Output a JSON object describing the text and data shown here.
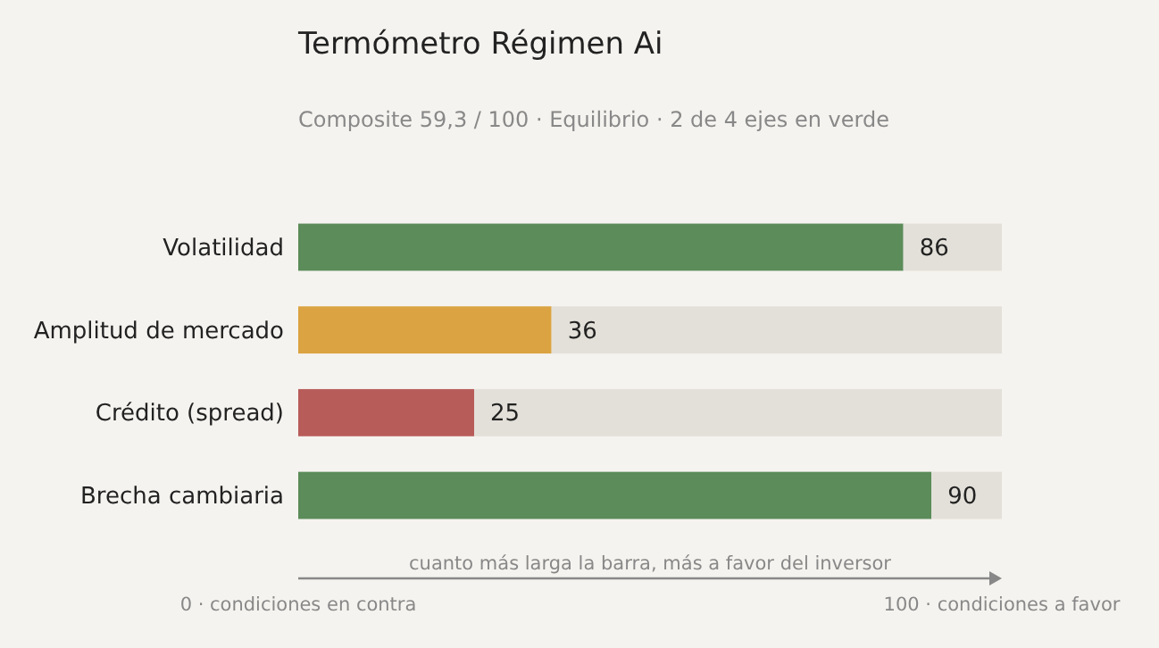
{
  "chart_data": {
    "type": "bar",
    "orientation": "horizontal",
    "stacked": true,
    "title": "Termómetro Régimen Ai",
    "subtitle": "Composite 59,3 / 100 · Equilibrio · 2 de 4 ejes en verde",
    "categories": [
      "Volatilidad",
      "Amplitud de mercado",
      "Crédito (spread)",
      "Brecha cambiaria"
    ],
    "series": [
      {
        "colors": [
          "#5b8c5a",
          "#dba341",
          "#b85c5a",
          "#5b8c5a"
        ],
        "values": [
          86,
          36,
          25,
          90
        ],
        "value_labels": [
          "86",
          "36",
          "25",
          "90"
        ]
      },
      {
        "color": "#e3e0d9",
        "values": [
          14,
          64,
          75,
          10
        ]
      }
    ],
    "xlim": [
      0,
      100
    ],
    "xticks": [
      {
        "value": 0,
        "label": "0 · condiciones en contra"
      },
      {
        "value": 100,
        "label": "100 · condiciones a favor"
      }
    ],
    "annotations": [
      "cuanto más larga la barra, más a favor del inversor"
    ]
  }
}
